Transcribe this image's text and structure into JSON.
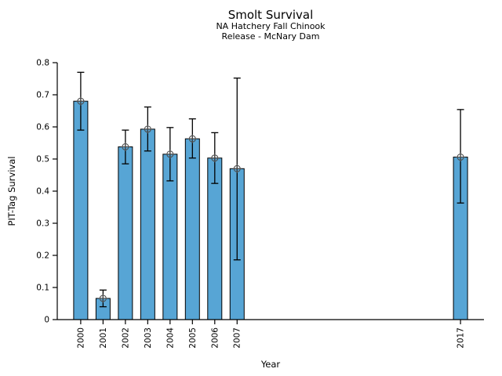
{
  "figure": {
    "title": "Smolt Survival",
    "subtitle_line1": "NA Hatchery Fall Chinook",
    "subtitle_line2": "Release - McNary Dam"
  },
  "chart_data": {
    "type": "bar",
    "title": "Smolt Survival",
    "subtitle": [
      "NA Hatchery Fall Chinook",
      "Release - McNary Dam"
    ],
    "xlabel": "Year",
    "ylabel": "PIT-Tag Survival",
    "categories": [
      "2000",
      "2001",
      "2002",
      "2003",
      "2004",
      "2005",
      "2006",
      "2007",
      "2017"
    ],
    "x_numeric": [
      2000,
      2001,
      2002,
      2003,
      2004,
      2005,
      2006,
      2007,
      2017
    ],
    "values": [
      0.68,
      0.066,
      0.538,
      0.593,
      0.515,
      0.563,
      0.503,
      0.47,
      0.506
    ],
    "error_low": [
      0.59,
      0.04,
      0.485,
      0.525,
      0.432,
      0.503,
      0.424,
      0.186,
      0.363
    ],
    "error_high": [
      0.77,
      0.092,
      0.59,
      0.662,
      0.598,
      0.625,
      0.582,
      0.752,
      0.654
    ],
    "xlim": [
      1998.95,
      2018.05
    ],
    "ylim": [
      0,
      0.8
    ],
    "ytick_values": [
      0,
      0.1,
      0.2,
      0.3,
      0.4,
      0.5,
      0.6,
      0.7,
      0.8
    ],
    "ytick_labels": [
      "0",
      "0.1",
      "0.2",
      "0.3",
      "0.4",
      "0.5",
      "0.6",
      "0.7",
      "0.8"
    ],
    "grid": false,
    "legend": null,
    "marker": "circle-plus",
    "colors": {
      "bar_fill": "#57A5D5",
      "bar_edge": "#000000",
      "error_bar": "#000000",
      "marker_stroke": "#4d4d4d",
      "axis": "#000000",
      "text": "#000000"
    }
  }
}
